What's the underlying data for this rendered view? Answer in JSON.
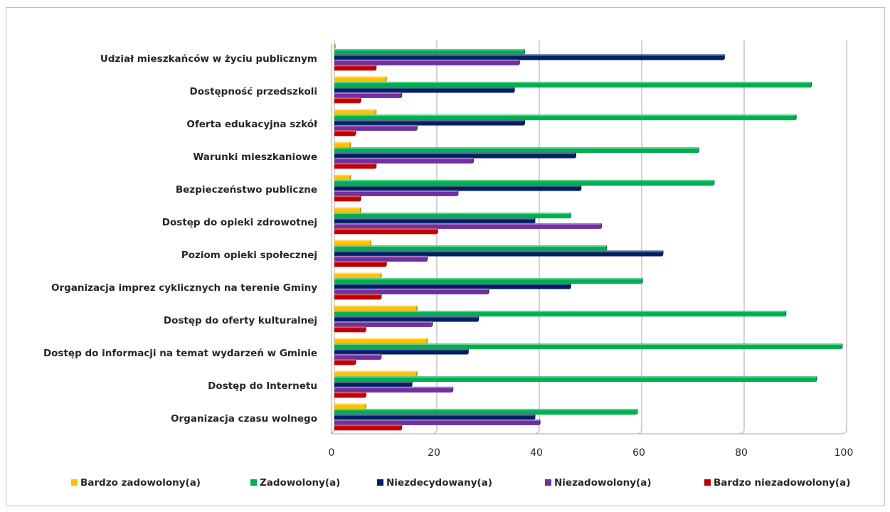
{
  "chart_data": {
    "type": "bar",
    "orientation": "horizontal",
    "categories": [
      "Udział mieszkańców w życiu publicznym",
      "Dostępność przedszkoli",
      "Oferta edukacyjna szkół",
      "Warunki mieszkaniowe",
      "Bezpieczeństwo publiczne",
      "Dostęp do opieki zdrowotnej",
      "Poziom opieki społecznej",
      "Organizacja imprez cyklicznych na terenie Gminy",
      "Dostęp do oferty kulturalnej",
      "Dostęp do informacji na temat wydarzeń w Gminie",
      "Dostęp do Internetu",
      "Organizacja czasu wolnego"
    ],
    "series": [
      {
        "name": "Bardzo zadowolony(a)",
        "color": "#FFC000",
        "values": [
          0,
          10,
          8,
          3,
          3,
          5,
          7,
          9,
          16,
          18,
          16,
          6
        ]
      },
      {
        "name": "Zadowolony(a)",
        "color": "#00B050",
        "values": [
          37,
          93,
          90,
          71,
          74,
          46,
          53,
          60,
          88,
          99,
          94,
          59
        ]
      },
      {
        "name": "Niezdecydowany(a)",
        "color": "#002060",
        "values": [
          76,
          35,
          37,
          47,
          48,
          39,
          64,
          46,
          28,
          26,
          15,
          39
        ]
      },
      {
        "name": "Niezadowolony(a)",
        "color": "#7030A0",
        "values": [
          36,
          13,
          16,
          27,
          24,
          52,
          18,
          30,
          19,
          9,
          23,
          40
        ]
      },
      {
        "name": "Bardzo niezadowolony(a)",
        "color": "#C00000",
        "values": [
          8,
          5,
          4,
          8,
          5,
          20,
          10,
          9,
          6,
          4,
          6,
          13
        ]
      }
    ],
    "xlim": [
      0,
      100
    ],
    "x_ticks": [
      0,
      20,
      40,
      60,
      80,
      100
    ],
    "grid": true,
    "legend_position": "bottom",
    "title": "",
    "xlabel": "",
    "ylabel": ""
  }
}
